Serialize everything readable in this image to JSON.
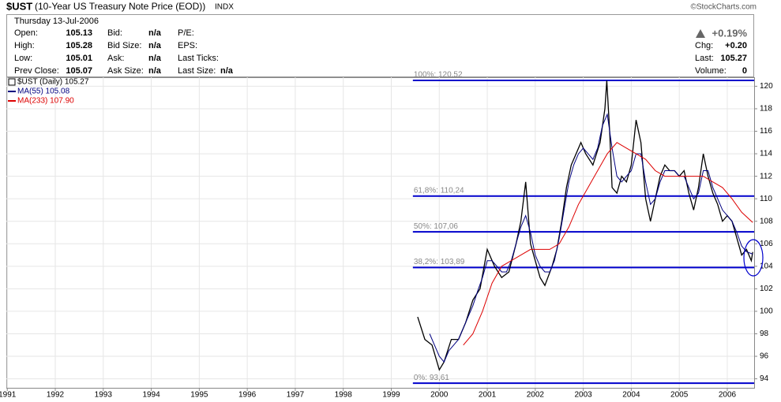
{
  "header": {
    "symbol": "$UST",
    "name": "(10-Year US Treasury Note Price (EOD))",
    "exchange": "INDX",
    "credit": "©StockCharts.com",
    "date": "Thursday 13-Jul-2006",
    "quotes": [
      {
        "label": "Open:",
        "value": 105.13
      },
      {
        "label": "High:",
        "value": 105.28
      },
      {
        "label": "Low:",
        "value": 105.01
      },
      {
        "label": "Prev Close:",
        "value": 105.07
      }
    ],
    "book": [
      {
        "label": "Bid:",
        "value": "n/a"
      },
      {
        "label": "Bid Size:",
        "value": "n/a"
      },
      {
        "label": "Ask:",
        "value": "n/a"
      },
      {
        "label": "Ask Size:",
        "value": "n/a"
      }
    ],
    "stats": [
      {
        "label": "P/E:"
      },
      {
        "label": "EPS:"
      },
      {
        "label": "Last Ticks:"
      },
      {
        "label": "Last Size:",
        "value": "n/a"
      }
    ],
    "change_pct": "+0.19%",
    "summary": [
      {
        "label": "Chg:",
        "value": "+0.20"
      },
      {
        "label": "Last:",
        "value": 105.27
      },
      {
        "label": "Volume:",
        "value": 0
      }
    ]
  },
  "chart_data": {
    "type": "line",
    "xlim": [
      1990.98,
      2006.56
    ],
    "xticks": [
      1991,
      1992,
      1993,
      1994,
      1995,
      1996,
      1997,
      1998,
      1999,
      2000,
      2001,
      2002,
      2003,
      2004,
      2005,
      2006
    ],
    "ylim": [
      93.2,
      120.8
    ],
    "yticks": [
      94,
      96,
      98,
      100,
      102,
      104,
      106,
      108,
      110,
      112,
      114,
      116,
      118,
      120
    ],
    "grid": true,
    "legend": "top-left",
    "series": [
      {
        "name": "$UST (Daily) 105.27",
        "color": "#000000",
        "x": [
          1999.55,
          1999.7,
          1999.85,
          2000.0,
          2000.1,
          2000.25,
          2000.4,
          2000.55,
          2000.7,
          2000.85,
          2001.0,
          2001.15,
          2001.3,
          2001.45,
          2001.6,
          2001.7,
          2001.8,
          2001.9,
          2002.0,
          2002.1,
          2002.2,
          2002.35,
          2002.45,
          2002.55,
          2002.65,
          2002.75,
          2002.85,
          2002.95,
          2003.05,
          2003.2,
          2003.35,
          2003.45,
          2003.49,
          2003.55,
          2003.6,
          2003.7,
          2003.8,
          2003.9,
          2004.0,
          2004.1,
          2004.2,
          2004.3,
          2004.4,
          2004.5,
          2004.6,
          2004.7,
          2004.8,
          2004.9,
          2005.0,
          2005.1,
          2005.2,
          2005.3,
          2005.4,
          2005.5,
          2005.6,
          2005.7,
          2005.8,
          2005.9,
          2006.0,
          2006.1,
          2006.2,
          2006.3,
          2006.4,
          2006.5,
          2006.53
        ],
        "values": [
          99.5,
          97.5,
          97,
          94.8,
          95.5,
          97.5,
          97.5,
          99,
          101,
          102,
          105.5,
          104,
          103,
          103.5,
          106,
          108,
          111.5,
          106,
          104.5,
          103,
          102.3,
          104,
          105.5,
          108,
          111,
          113,
          114,
          115,
          114,
          113,
          115,
          118,
          120.5,
          116,
          111,
          110.5,
          112,
          111.5,
          113,
          117,
          115,
          110,
          108,
          110,
          112,
          113,
          112.5,
          112.5,
          112,
          112.5,
          110.5,
          109,
          111,
          114,
          112,
          110.5,
          109.5,
          108,
          108.5,
          108,
          106.5,
          105,
          105.5,
          104.5,
          105.27
        ]
      },
      {
        "name": "MA(55) 105.08",
        "color": "#000080",
        "x": [
          1999.8,
          1999.9,
          2000.0,
          2000.1,
          2000.2,
          2000.3,
          2000.4,
          2000.5,
          2000.6,
          2000.7,
          2000.8,
          2000.9,
          2001.0,
          2001.1,
          2001.2,
          2001.3,
          2001.4,
          2001.5,
          2001.6,
          2001.7,
          2001.8,
          2001.9,
          2002.0,
          2002.1,
          2002.2,
          2002.3,
          2002.4,
          2002.5,
          2002.6,
          2002.7,
          2002.8,
          2002.9,
          2003.0,
          2003.1,
          2003.2,
          2003.3,
          2003.4,
          2003.5,
          2003.6,
          2003.7,
          2003.8,
          2003.9,
          2004.0,
          2004.1,
          2004.2,
          2004.3,
          2004.4,
          2004.5,
          2004.6,
          2004.7,
          2004.8,
          2004.9,
          2005.0,
          2005.1,
          2005.2,
          2005.3,
          2005.4,
          2005.5,
          2005.6,
          2005.7,
          2005.8,
          2005.9,
          2006.0,
          2006.1,
          2006.2,
          2006.3,
          2006.4,
          2006.53
        ],
        "values": [
          98,
          97,
          96,
          95.5,
          96.5,
          97,
          97.5,
          98.5,
          99.5,
          100.5,
          101.8,
          103,
          104.5,
          104.5,
          104,
          103.5,
          103.5,
          104.5,
          106,
          107.5,
          108.5,
          107,
          105,
          104,
          103.5,
          103.5,
          104.5,
          106.5,
          109,
          111.5,
          113,
          114,
          114.5,
          114,
          113.5,
          114.5,
          116.5,
          117.5,
          114.5,
          112,
          111.5,
          112,
          112.5,
          114,
          114,
          111.5,
          109.5,
          110,
          111.5,
          112.5,
          112.5,
          112.5,
          112,
          112,
          111,
          110,
          110.5,
          112.5,
          112.5,
          111,
          110,
          109,
          108.5,
          108,
          107,
          105.8,
          105.3,
          105.08
        ]
      },
      {
        "name": "MA(233) 107.90",
        "color": "#dd0000",
        "x": [
          2000.5,
          2000.7,
          2000.9,
          2001.1,
          2001.3,
          2001.5,
          2001.7,
          2001.9,
          2002.1,
          2002.3,
          2002.5,
          2002.7,
          2002.9,
          2003.1,
          2003.3,
          2003.5,
          2003.7,
          2003.9,
          2004.1,
          2004.3,
          2004.5,
          2004.7,
          2004.9,
          2005.1,
          2005.3,
          2005.5,
          2005.7,
          2005.9,
          2006.1,
          2006.3,
          2006.53
        ],
        "values": [
          97,
          98,
          100,
          102.5,
          104,
          104.5,
          105,
          105.5,
          105.5,
          105.5,
          106,
          107.5,
          109.5,
          111,
          112.5,
          114,
          115,
          114.5,
          114,
          113.5,
          112.5,
          112,
          112,
          112,
          112,
          112,
          111.5,
          111,
          110,
          108.8,
          107.9
        ]
      }
    ],
    "levels": [
      {
        "label": "100%: 120,52",
        "value": 120.52
      },
      {
        "label": "61,8%: 110,24",
        "value": 110.24
      },
      {
        "label": "50%: 107,06",
        "value": 107.06
      },
      {
        "label": "38,2%: 103,89",
        "value": 103.89
      },
      {
        "label": "0%: 93,61",
        "value": 93.61
      }
    ],
    "level_color": "#0000cc",
    "level_start": 1999.45
  }
}
